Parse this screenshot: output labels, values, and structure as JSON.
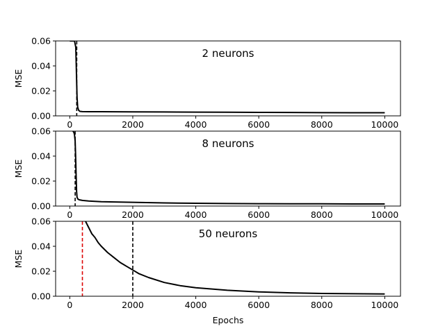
{
  "chart_data": [
    {
      "type": "line",
      "annotation": "2 neurons",
      "ylabel": "MSE",
      "xlabel": "",
      "xlim": [
        -450,
        10500
      ],
      "ylim": [
        0,
        0.06
      ],
      "xticks": [
        0,
        2000,
        4000,
        6000,
        8000,
        10000
      ],
      "xtick_labels": [
        "0",
        "2000",
        "4000",
        "6000",
        "8000",
        "10000"
      ],
      "yticks": [
        0,
        0.02,
        0.04,
        0.06
      ],
      "ytick_labels": [
        "0.00",
        "0.02",
        "0.04",
        "0.06"
      ],
      "grid": false,
      "series": [
        {
          "color": "#000000",
          "x": [
            0,
            100,
            150,
            190,
            210,
            230,
            250,
            280,
            320,
            400,
            600,
            1000,
            2000,
            3000,
            4000,
            5000,
            6000,
            7000,
            8000,
            9000,
            10000
          ],
          "y": [
            0.06,
            0.06,
            0.06,
            0.055,
            0.035,
            0.015,
            0.007,
            0.0045,
            0.0036,
            0.0034,
            0.0033,
            0.0033,
            0.0032,
            0.0031,
            0.003,
            0.0029,
            0.0028,
            0.0027,
            0.0026,
            0.0025,
            0.0025
          ]
        }
      ],
      "vlines": [
        {
          "x": 220,
          "color": "#000000",
          "style": "dashed"
        }
      ]
    },
    {
      "type": "line",
      "annotation": "8 neurons",
      "ylabel": "MSE",
      "xlabel": "",
      "xlim": [
        -450,
        10500
      ],
      "ylim": [
        0,
        0.06
      ],
      "xticks": [
        0,
        2000,
        4000,
        6000,
        8000,
        10000
      ],
      "xtick_labels": [
        "0",
        "2000",
        "4000",
        "6000",
        "8000",
        "10000"
      ],
      "yticks": [
        0,
        0.02,
        0.04,
        0.06
      ],
      "ytick_labels": [
        "0.00",
        "0.02",
        "0.04",
        "0.06"
      ],
      "grid": false,
      "series": [
        {
          "color": "#000000",
          "x": [
            100,
            130,
            150,
            170,
            185,
            200,
            215,
            230,
            260,
            300,
            400,
            600,
            1000,
            2000,
            3000,
            4000,
            5000,
            6000,
            7000,
            8000,
            9000,
            10000
          ],
          "y": [
            0.06,
            0.059,
            0.057,
            0.052,
            0.04,
            0.025,
            0.012,
            0.007,
            0.0055,
            0.005,
            0.0045,
            0.004,
            0.0035,
            0.003,
            0.0025,
            0.0022,
            0.002,
            0.0019,
            0.0018,
            0.0018,
            0.0017,
            0.0017
          ]
        }
      ],
      "vlines": [
        {
          "x": 170,
          "color": "#000000",
          "style": "dashed"
        }
      ]
    },
    {
      "type": "line",
      "annotation": "50 neurons",
      "ylabel": "MSE",
      "xlabel": "Epochs",
      "xlim": [
        -450,
        10500
      ],
      "ylim": [
        0,
        0.06
      ],
      "xticks": [
        0,
        2000,
        4000,
        6000,
        8000,
        10000
      ],
      "xtick_labels": [
        "0",
        "2000",
        "4000",
        "6000",
        "8000",
        "10000"
      ],
      "yticks": [
        0,
        0.02,
        0.04,
        0.06
      ],
      "ytick_labels": [
        "0.00",
        "0.02",
        "0.04",
        "0.06"
      ],
      "grid": false,
      "series": [
        {
          "color": "#000000",
          "x": [
            500,
            600,
            700,
            800,
            900,
            1000,
            1200,
            1400,
            1600,
            1800,
            2000,
            2200,
            2500,
            3000,
            3500,
            4000,
            5000,
            6000,
            7000,
            8000,
            9000,
            10000
          ],
          "y": [
            0.06,
            0.055,
            0.05,
            0.047,
            0.043,
            0.04,
            0.035,
            0.031,
            0.027,
            0.024,
            0.021,
            0.018,
            0.015,
            0.011,
            0.0085,
            0.0068,
            0.0048,
            0.0035,
            0.0027,
            0.0022,
            0.002,
            0.0018
          ]
        }
      ],
      "vlines": [
        {
          "x": 400,
          "color": "#dd0000",
          "style": "dashed"
        },
        {
          "x": 2000,
          "color": "#000000",
          "style": "dashed"
        }
      ]
    }
  ]
}
